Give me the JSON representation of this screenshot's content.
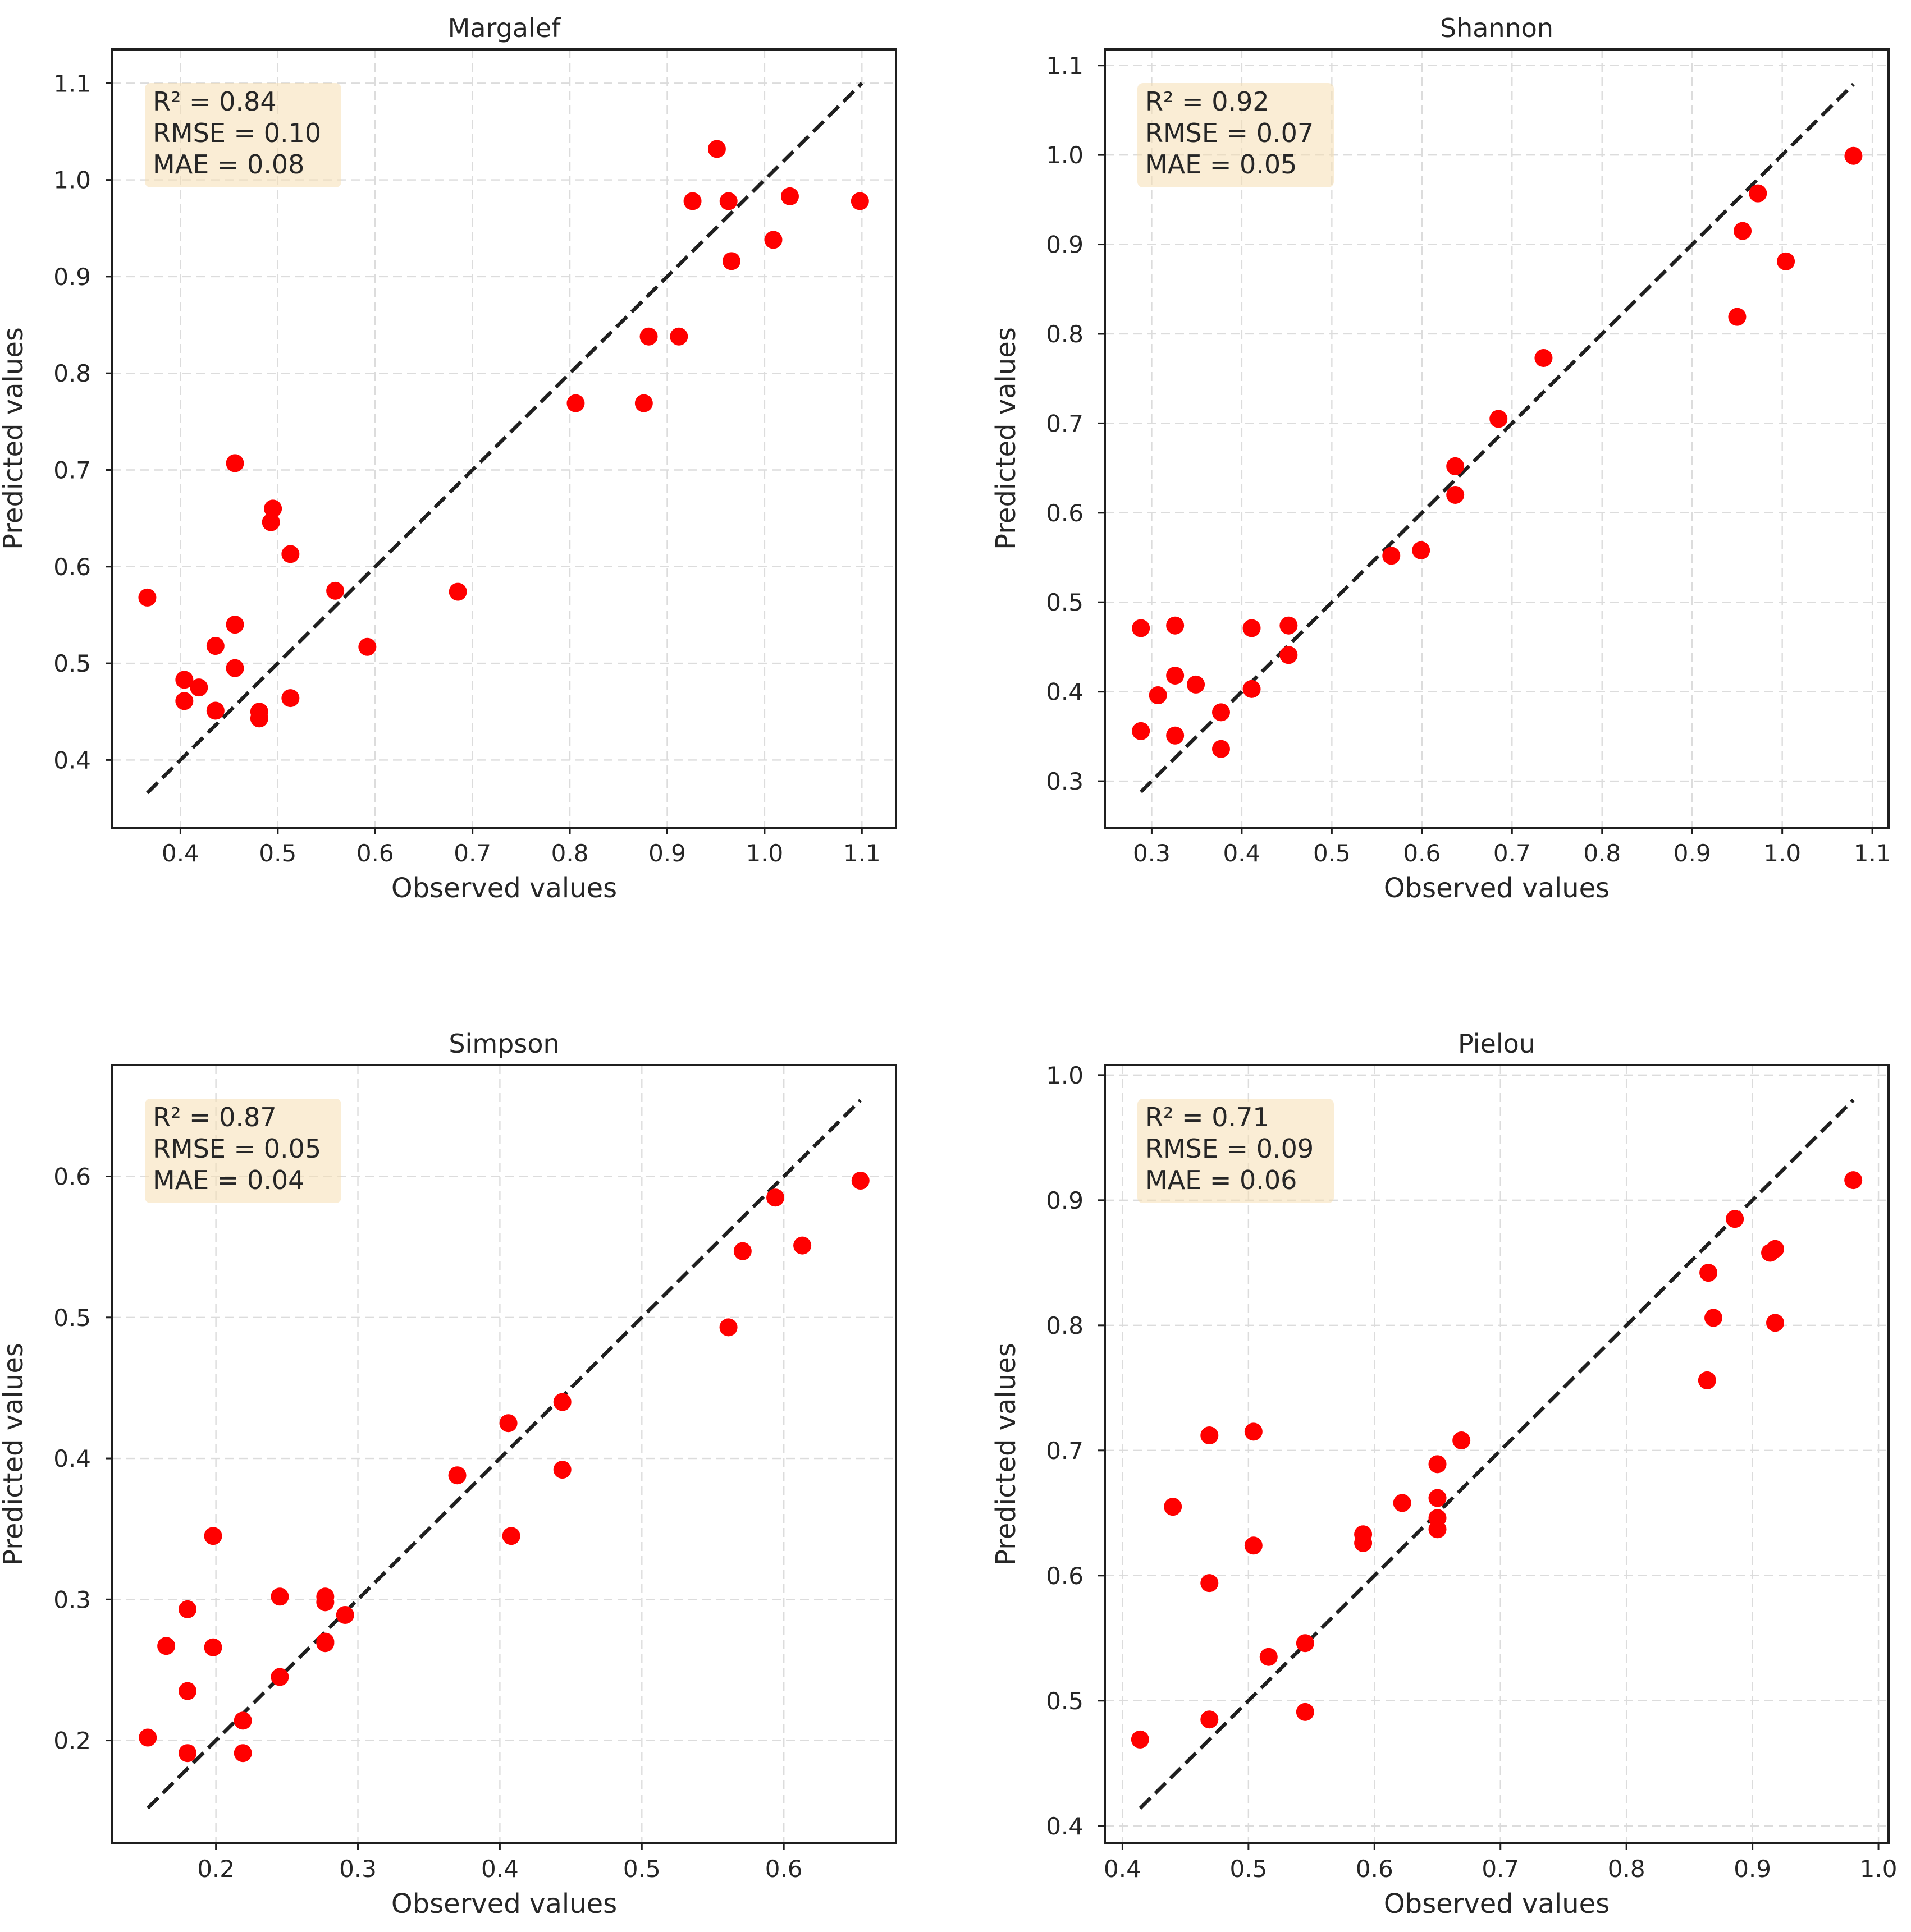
{
  "colors": {
    "point": "#ff0000",
    "fit_line": "#1f1f1f",
    "grid": "#dcdcdc",
    "frame": "#1f1f1f",
    "stats_box": "#f5deb3"
  },
  "chart_data": [
    {
      "type": "scatter",
      "title": "Margalef",
      "xlabel": "Observed values",
      "ylabel": "Predicted values",
      "xlim": [
        0.33,
        1.135
      ],
      "ylim": [
        0.33,
        1.135
      ],
      "xticks": [
        {
          "v": 0.4,
          "label": "0.4"
        },
        {
          "v": 0.5,
          "label": "0.5"
        },
        {
          "v": 0.6,
          "label": "0.6"
        },
        {
          "v": 0.7,
          "label": "0.7"
        },
        {
          "v": 0.8,
          "label": "0.8"
        },
        {
          "v": 0.9,
          "label": "0.9"
        },
        {
          "v": 1.0,
          "label": "1.0"
        },
        {
          "v": 1.1,
          "label": "1.1"
        }
      ],
      "yticks": [
        {
          "v": 0.4,
          "label": "0.4"
        },
        {
          "v": 0.5,
          "label": "0.5"
        },
        {
          "v": 0.6,
          "label": "0.6"
        },
        {
          "v": 0.7,
          "label": "0.7"
        },
        {
          "v": 0.8,
          "label": "0.8"
        },
        {
          "v": 0.9,
          "label": "0.9"
        },
        {
          "v": 1.0,
          "label": "1.0"
        },
        {
          "v": 1.1,
          "label": "1.1"
        }
      ],
      "line": [
        0.366,
        1.1
      ],
      "stats": [
        "R² = 0.84",
        "RMSE = 0.10",
        "MAE = 0.08"
      ],
      "points": [
        [
          0.366,
          0.568
        ],
        [
          0.404,
          0.483
        ],
        [
          0.404,
          0.461
        ],
        [
          0.419,
          0.475
        ],
        [
          0.436,
          0.518
        ],
        [
          0.436,
          0.451
        ],
        [
          0.456,
          0.707
        ],
        [
          0.456,
          0.54
        ],
        [
          0.456,
          0.495
        ],
        [
          0.481,
          0.45
        ],
        [
          0.481,
          0.443
        ],
        [
          0.493,
          0.646
        ],
        [
          0.495,
          0.66
        ],
        [
          0.513,
          0.613
        ],
        [
          0.513,
          0.464
        ],
        [
          0.559,
          0.575
        ],
        [
          0.592,
          0.517
        ],
        [
          0.685,
          0.574
        ],
        [
          0.806,
          0.769
        ],
        [
          0.876,
          0.769
        ],
        [
          0.881,
          0.838
        ],
        [
          0.912,
          0.838
        ],
        [
          0.926,
          0.978
        ],
        [
          0.951,
          1.032
        ],
        [
          0.963,
          0.978
        ],
        [
          0.966,
          0.916
        ],
        [
          1.009,
          0.938
        ],
        [
          1.026,
          0.983
        ],
        [
          1.098,
          0.978
        ]
      ]
    },
    {
      "type": "scatter",
      "title": "Shannon",
      "xlabel": "Observed values",
      "ylabel": "Predicted values",
      "xlim": [
        0.248,
        1.118
      ],
      "ylim": [
        0.248,
        1.118
      ],
      "xticks": [
        {
          "v": 0.3,
          "label": "0.3"
        },
        {
          "v": 0.4,
          "label": "0.4"
        },
        {
          "v": 0.5,
          "label": "0.5"
        },
        {
          "v": 0.6,
          "label": "0.6"
        },
        {
          "v": 0.7,
          "label": "0.7"
        },
        {
          "v": 0.8,
          "label": "0.8"
        },
        {
          "v": 0.9,
          "label": "0.9"
        },
        {
          "v": 1.0,
          "label": "1.0"
        },
        {
          "v": 1.1,
          "label": "1.1"
        }
      ],
      "yticks": [
        {
          "v": 0.3,
          "label": "0.3"
        },
        {
          "v": 0.4,
          "label": "0.4"
        },
        {
          "v": 0.5,
          "label": "0.5"
        },
        {
          "v": 0.6,
          "label": "0.6"
        },
        {
          "v": 0.7,
          "label": "0.7"
        },
        {
          "v": 0.8,
          "label": "0.8"
        },
        {
          "v": 0.9,
          "label": "0.9"
        },
        {
          "v": 1.0,
          "label": "1.0"
        },
        {
          "v": 1.1,
          "label": "1.1"
        }
      ],
      "line": [
        0.288,
        1.079
      ],
      "stats": [
        "R² = 0.92",
        "RMSE = 0.07",
        "MAE = 0.05"
      ],
      "points": [
        [
          0.288,
          0.471
        ],
        [
          0.288,
          0.356
        ],
        [
          0.307,
          0.396
        ],
        [
          0.326,
          0.474
        ],
        [
          0.326,
          0.418
        ],
        [
          0.326,
          0.351
        ],
        [
          0.349,
          0.408
        ],
        [
          0.377,
          0.377
        ],
        [
          0.377,
          0.336
        ],
        [
          0.411,
          0.471
        ],
        [
          0.411,
          0.403
        ],
        [
          0.452,
          0.474
        ],
        [
          0.452,
          0.441
        ],
        [
          0.566,
          0.552
        ],
        [
          0.599,
          0.558
        ],
        [
          0.637,
          0.652
        ],
        [
          0.637,
          0.62
        ],
        [
          0.685,
          0.705
        ],
        [
          0.735,
          0.773
        ],
        [
          0.95,
          0.819
        ],
        [
          0.956,
          0.915
        ],
        [
          0.973,
          0.957
        ],
        [
          1.004,
          0.881
        ],
        [
          1.079,
          0.999
        ]
      ]
    },
    {
      "type": "scatter",
      "title": "Simpson",
      "xlabel": "Observed values",
      "ylabel": "Predicted values",
      "xlim": [
        0.127,
        0.679
      ],
      "ylim": [
        0.127,
        0.679
      ],
      "xticks": [
        {
          "v": 0.2,
          "label": "0.2"
        },
        {
          "v": 0.3,
          "label": "0.3"
        },
        {
          "v": 0.4,
          "label": "0.4"
        },
        {
          "v": 0.5,
          "label": "0.5"
        },
        {
          "v": 0.6,
          "label": "0.6"
        }
      ],
      "yticks": [
        {
          "v": 0.2,
          "label": "0.2"
        },
        {
          "v": 0.3,
          "label": "0.3"
        },
        {
          "v": 0.4,
          "label": "0.4"
        },
        {
          "v": 0.5,
          "label": "0.5"
        },
        {
          "v": 0.6,
          "label": "0.6"
        }
      ],
      "line": [
        0.152,
        0.654
      ],
      "stats": [
        "R² = 0.87",
        "RMSE = 0.05",
        "MAE = 0.04"
      ],
      "points": [
        [
          0.152,
          0.202
        ],
        [
          0.165,
          0.267
        ],
        [
          0.18,
          0.293
        ],
        [
          0.18,
          0.235
        ],
        [
          0.18,
          0.191
        ],
        [
          0.198,
          0.345
        ],
        [
          0.198,
          0.266
        ],
        [
          0.219,
          0.214
        ],
        [
          0.219,
          0.191
        ],
        [
          0.245,
          0.302
        ],
        [
          0.245,
          0.245
        ],
        [
          0.277,
          0.302
        ],
        [
          0.277,
          0.298
        ],
        [
          0.277,
          0.269
        ],
        [
          0.277,
          0.27
        ],
        [
          0.291,
          0.289
        ],
        [
          0.37,
          0.388
        ],
        [
          0.406,
          0.425
        ],
        [
          0.408,
          0.345
        ],
        [
          0.444,
          0.44
        ],
        [
          0.444,
          0.392
        ],
        [
          0.561,
          0.493
        ],
        [
          0.571,
          0.547
        ],
        [
          0.594,
          0.585
        ],
        [
          0.613,
          0.551
        ],
        [
          0.654,
          0.597
        ]
      ]
    },
    {
      "type": "scatter",
      "title": "Pielou",
      "xlabel": "Observed values",
      "ylabel": "Predicted values",
      "xlim": [
        0.386,
        1.008
      ],
      "ylim": [
        0.386,
        1.008
      ],
      "xticks": [
        {
          "v": 0.4,
          "label": "0.4"
        },
        {
          "v": 0.5,
          "label": "0.5"
        },
        {
          "v": 0.6,
          "label": "0.6"
        },
        {
          "v": 0.7,
          "label": "0.7"
        },
        {
          "v": 0.8,
          "label": "0.8"
        },
        {
          "v": 0.9,
          "label": "0.9"
        },
        {
          "v": 1.0,
          "label": "1.0"
        }
      ],
      "yticks": [
        {
          "v": 0.4,
          "label": "0.4"
        },
        {
          "v": 0.5,
          "label": "0.5"
        },
        {
          "v": 0.6,
          "label": "0.6"
        },
        {
          "v": 0.7,
          "label": "0.7"
        },
        {
          "v": 0.8,
          "label": "0.8"
        },
        {
          "v": 0.9,
          "label": "0.9"
        },
        {
          "v": 1.0,
          "label": "1.0"
        }
      ],
      "line": [
        0.414,
        0.98
      ],
      "stats": [
        "R² = 0.71",
        "RMSE = 0.09",
        "MAE = 0.06"
      ],
      "points": [
        [
          0.414,
          0.469
        ],
        [
          0.44,
          0.655
        ],
        [
          0.469,
          0.712
        ],
        [
          0.469,
          0.594
        ],
        [
          0.469,
          0.485
        ],
        [
          0.504,
          0.715
        ],
        [
          0.504,
          0.624
        ],
        [
          0.516,
          0.535
        ],
        [
          0.545,
          0.546
        ],
        [
          0.545,
          0.491
        ],
        [
          0.591,
          0.633
        ],
        [
          0.591,
          0.626
        ],
        [
          0.622,
          0.658
        ],
        [
          0.65,
          0.689
        ],
        [
          0.65,
          0.662
        ],
        [
          0.65,
          0.646
        ],
        [
          0.65,
          0.637
        ],
        [
          0.669,
          0.708
        ],
        [
          0.864,
          0.756
        ],
        [
          0.865,
          0.842
        ],
        [
          0.869,
          0.806
        ],
        [
          0.886,
          0.885
        ],
        [
          0.914,
          0.858
        ],
        [
          0.918,
          0.861
        ],
        [
          0.918,
          0.802
        ],
        [
          0.98,
          0.916
        ]
      ]
    }
  ]
}
